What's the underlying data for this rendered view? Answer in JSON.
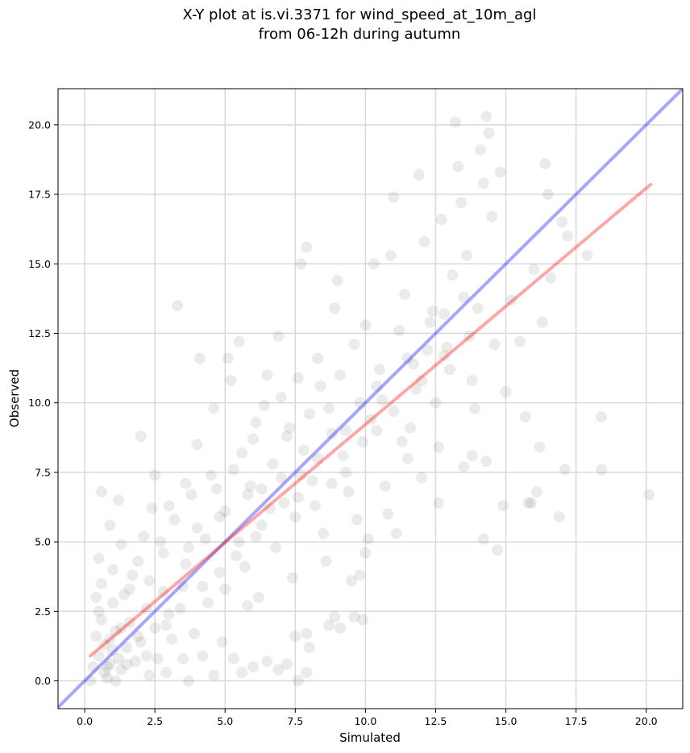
{
  "chart_data": {
    "type": "scatter",
    "title_lines": [
      "X-Y plot at is.vi.3371 for wind_speed_at_10m_agl",
      "from 06-12h during autumn"
    ],
    "xlabel": "Simulated",
    "ylabel": "Observed",
    "xlim": [
      -0.95,
      21.3
    ],
    "ylim": [
      -1.0,
      21.3
    ],
    "x_ticks": [
      0.0,
      2.5,
      5.0,
      7.5,
      10.0,
      12.5,
      15.0,
      17.5,
      20.0
    ],
    "y_ticks": [
      0.0,
      2.5,
      5.0,
      7.5,
      10.0,
      12.5,
      15.0,
      17.5,
      20.0
    ],
    "x_tick_labels": [
      "0.0",
      "2.5",
      "5.0",
      "7.5",
      "10.0",
      "12.5",
      "15.0",
      "17.5",
      "20.0"
    ],
    "y_tick_labels": [
      "0.0",
      "2.5",
      "5.0",
      "7.5",
      "10.0",
      "12.5",
      "15.0",
      "17.5",
      "20.0"
    ],
    "grid": true,
    "marker_color": "#000000",
    "marker_alpha": 0.08,
    "reference_line": {
      "color": "#0000ff",
      "alpha": 0.35,
      "points": [
        [
          -0.95,
          -0.95
        ],
        [
          21.3,
          21.3
        ]
      ]
    },
    "fit_line": {
      "color": "#ff0000",
      "alpha": 0.35,
      "points": [
        [
          0.2,
          0.9
        ],
        [
          20.15,
          17.85
        ]
      ]
    },
    "points": [
      [
        0.5,
        0.9
      ],
      [
        0.7,
        1.3
      ],
      [
        0.9,
        0.6
      ],
      [
        1.1,
        1.8
      ],
      [
        1.3,
        0.4
      ],
      [
        0.6,
        2.2
      ],
      [
        0.8,
        0.1
      ],
      [
        1.5,
        1.2
      ],
      [
        1.0,
        2.8
      ],
      [
        0.4,
        1.6
      ],
      [
        1.2,
        0.8
      ],
      [
        0.9,
        1.5
      ],
      [
        0.7,
        0.3
      ],
      [
        1.6,
        2.1
      ],
      [
        1.8,
        0.7
      ],
      [
        0.3,
        0.5
      ],
      [
        1.4,
        3.1
      ],
      [
        2.0,
        1.4
      ],
      [
        0.6,
        3.5
      ],
      [
        1.1,
        0.0
      ],
      [
        2.2,
        2.6
      ],
      [
        0.5,
        4.4
      ],
      [
        1.7,
        3.8
      ],
      [
        2.5,
        1.9
      ],
      [
        2.8,
        3.2
      ],
      [
        1.3,
        4.9
      ],
      [
        0.9,
        5.6
      ],
      [
        2.1,
        5.2
      ],
      [
        3.0,
        2.4
      ],
      [
        0.2,
        0.0
      ],
      [
        0.6,
        6.8
      ],
      [
        1.2,
        6.5
      ],
      [
        2.0,
        8.8
      ],
      [
        2.4,
        6.2
      ],
      [
        2.8,
        4.6
      ],
      [
        3.2,
        5.8
      ],
      [
        3.5,
        3.4
      ],
      [
        3.7,
        0.0
      ],
      [
        3.3,
        13.5
      ],
      [
        3.6,
        4.2
      ],
      [
        3.8,
        6.7
      ],
      [
        4.0,
        8.5
      ],
      [
        4.3,
        5.1
      ],
      [
        4.1,
        11.6
      ],
      [
        4.5,
        7.4
      ],
      [
        4.8,
        3.9
      ],
      [
        4.6,
        9.8
      ],
      [
        5.0,
        6.1
      ],
      [
        5.2,
        10.8
      ],
      [
        5.4,
        4.5
      ],
      [
        5.6,
        8.2
      ],
      [
        5.8,
        2.7
      ],
      [
        5.1,
        11.6
      ],
      [
        5.5,
        12.2
      ],
      [
        5.9,
        7.0
      ],
      [
        6.1,
        9.3
      ],
      [
        6.3,
        5.6
      ],
      [
        6.5,
        11.0
      ],
      [
        6.7,
        7.8
      ],
      [
        6.9,
        12.4
      ],
      [
        7.1,
        6.4
      ],
      [
        7.3,
        9.1
      ],
      [
        7.4,
        3.7
      ],
      [
        7.6,
        10.9
      ],
      [
        7.8,
        8.3
      ],
      [
        7.9,
        15.6
      ],
      [
        7.7,
        15.0
      ],
      [
        8.1,
        7.2
      ],
      [
        8.3,
        11.6
      ],
      [
        8.5,
        5.3
      ],
      [
        8.7,
        9.8
      ],
      [
        8.9,
        13.4
      ],
      [
        9.0,
        14.4
      ],
      [
        9.2,
        8.1
      ],
      [
        9.4,
        6.8
      ],
      [
        9.6,
        12.1
      ],
      [
        9.8,
        10.0
      ],
      [
        10.0,
        12.8
      ],
      [
        10.2,
        9.4
      ],
      [
        10.3,
        15.0
      ],
      [
        10.5,
        11.2
      ],
      [
        10.7,
        7.0
      ],
      [
        10.9,
        15.3
      ],
      [
        11.0,
        17.4
      ],
      [
        11.2,
        12.6
      ],
      [
        11.4,
        13.9
      ],
      [
        11.6,
        9.1
      ],
      [
        11.8,
        10.5
      ],
      [
        11.9,
        18.2
      ],
      [
        12.1,
        15.8
      ],
      [
        12.2,
        11.9
      ],
      [
        12.4,
        13.3
      ],
      [
        12.6,
        8.4
      ],
      [
        12.7,
        16.6
      ],
      [
        12.9,
        12.0
      ],
      [
        13.1,
        14.6
      ],
      [
        13.2,
        20.1
      ],
      [
        13.3,
        18.5
      ],
      [
        13.4,
        17.2
      ],
      [
        13.6,
        15.3
      ],
      [
        13.8,
        10.8
      ],
      [
        14.0,
        13.4
      ],
      [
        14.1,
        19.1
      ],
      [
        14.2,
        17.9
      ],
      [
        14.3,
        20.3
      ],
      [
        14.4,
        19.7
      ],
      [
        14.5,
        16.7
      ],
      [
        14.6,
        12.1
      ],
      [
        14.8,
        18.3
      ],
      [
        15.0,
        10.4
      ],
      [
        15.2,
        13.7
      ],
      [
        15.5,
        12.2
      ],
      [
        15.7,
        9.5
      ],
      [
        15.9,
        6.4
      ],
      [
        16.0,
        14.8
      ],
      [
        16.1,
        6.8
      ],
      [
        16.3,
        12.9
      ],
      [
        16.4,
        18.6
      ],
      [
        16.5,
        17.5
      ],
      [
        16.6,
        14.5
      ],
      [
        16.9,
        5.9
      ],
      [
        17.0,
        16.5
      ],
      [
        17.1,
        7.6
      ],
      [
        17.2,
        16.0
      ],
      [
        17.9,
        15.3
      ],
      [
        18.4,
        9.5
      ],
      [
        18.4,
        7.6
      ],
      [
        20.1,
        6.7
      ],
      [
        16.2,
        8.4
      ],
      [
        15.8,
        6.4
      ],
      [
        14.9,
        6.3
      ],
      [
        14.7,
        4.7
      ],
      [
        14.2,
        5.1
      ],
      [
        14.3,
        7.9
      ],
      [
        13.8,
        8.1
      ],
      [
        13.5,
        7.7
      ],
      [
        12.6,
        6.4
      ],
      [
        12.0,
        7.3
      ],
      [
        11.5,
        8.0
      ],
      [
        11.1,
        5.3
      ],
      [
        10.8,
        6.0
      ],
      [
        10.1,
        5.1
      ],
      [
        10.0,
        4.6
      ],
      [
        9.8,
        3.8
      ],
      [
        9.5,
        3.6
      ],
      [
        9.9,
        2.2
      ],
      [
        9.6,
        2.3
      ],
      [
        9.1,
        1.9
      ],
      [
        8.9,
        2.3
      ],
      [
        8.7,
        2.0
      ],
      [
        7.9,
        0.3
      ],
      [
        7.6,
        0.0
      ],
      [
        7.9,
        1.7
      ],
      [
        8.0,
        1.2
      ],
      [
        7.5,
        1.6
      ],
      [
        7.2,
        0.6
      ],
      [
        6.9,
        0.4
      ],
      [
        6.5,
        0.7
      ],
      [
        6.0,
        0.5
      ],
      [
        5.6,
        0.3
      ],
      [
        5.3,
        0.8
      ],
      [
        4.9,
        1.4
      ],
      [
        4.6,
        0.2
      ],
      [
        4.2,
        0.9
      ],
      [
        3.9,
        1.7
      ],
      [
        3.5,
        0.8
      ],
      [
        3.1,
        1.5
      ],
      [
        2.9,
        0.3
      ],
      [
        2.6,
        0.8
      ],
      [
        2.3,
        0.2
      ],
      [
        4.4,
        2.8
      ],
      [
        5.0,
        3.3
      ],
      [
        5.7,
        4.1
      ],
      [
        6.2,
        3.0
      ],
      [
        6.8,
        4.8
      ],
      [
        7.5,
        5.9
      ],
      [
        8.2,
        6.3
      ],
      [
        8.6,
        4.3
      ],
      [
        9.3,
        7.5
      ],
      [
        9.7,
        5.8
      ],
      [
        6.0,
        8.7
      ],
      [
        6.4,
        9.9
      ],
      [
        6.6,
        6.2
      ],
      [
        7.0,
        10.2
      ],
      [
        7.2,
        8.8
      ],
      [
        7.7,
        7.4
      ],
      [
        8.0,
        9.6
      ],
      [
        8.4,
        10.6
      ],
      [
        8.8,
        8.9
      ],
      [
        9.1,
        11.0
      ],
      [
        4.7,
        6.9
      ],
      [
        5.3,
        7.6
      ],
      [
        5.8,
        6.7
      ],
      [
        6.1,
        5.2
      ],
      [
        4.0,
        5.5
      ],
      [
        3.6,
        7.1
      ],
      [
        3.0,
        6.3
      ],
      [
        2.5,
        7.4
      ],
      [
        2.7,
        5.0
      ],
      [
        1.9,
        4.3
      ],
      [
        12.3,
        12.9
      ],
      [
        12.8,
        13.2
      ],
      [
        11.7,
        11.4
      ],
      [
        10.6,
        10.1
      ],
      [
        10.4,
        9.0
      ],
      [
        11.3,
        8.6
      ],
      [
        12.5,
        10.0
      ],
      [
        13.0,
        11.2
      ],
      [
        13.7,
        12.4
      ],
      [
        13.9,
        9.8
      ],
      [
        1.0,
        1.1
      ],
      [
        0.8,
        0.5
      ],
      [
        1.3,
        1.9
      ],
      [
        0.5,
        2.5
      ],
      [
        1.5,
        0.6
      ],
      [
        1.9,
        1.6
      ],
      [
        2.2,
        0.9
      ],
      [
        0.4,
        3.0
      ],
      [
        1.6,
        3.3
      ],
      [
        1.0,
        4.0
      ],
      [
        2.3,
        3.6
      ],
      [
        2.9,
        2.0
      ],
      [
        3.4,
        2.6
      ],
      [
        3.7,
        4.8
      ],
      [
        4.2,
        3.4
      ],
      [
        4.8,
        5.9
      ],
      [
        5.5,
        5.0
      ],
      [
        6.3,
        6.9
      ],
      [
        7.0,
        7.3
      ],
      [
        7.6,
        6.6
      ],
      [
        8.3,
        8.0
      ],
      [
        8.8,
        7.1
      ],
      [
        9.3,
        9.0
      ],
      [
        9.9,
        8.6
      ],
      [
        10.4,
        10.6
      ],
      [
        11.0,
        9.7
      ],
      [
        11.5,
        11.6
      ],
      [
        12.0,
        10.8
      ],
      [
        12.8,
        11.7
      ],
      [
        13.5,
        13.8
      ]
    ]
  }
}
